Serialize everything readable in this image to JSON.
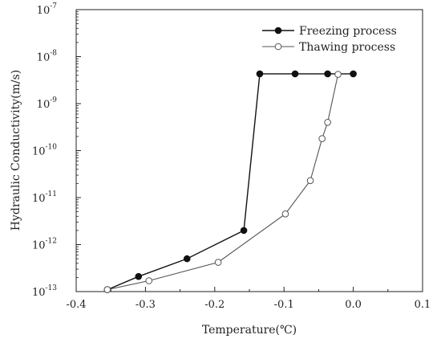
{
  "chart_data": {
    "type": "line",
    "title": "",
    "xlabel": "Temperature(℃)",
    "ylabel": "Hydraulic Conductivity(m/s)",
    "xlim": [
      -0.4,
      0.1
    ],
    "ylim": [
      1e-13,
      1e-07
    ],
    "y_scale": "log",
    "x_ticks": [
      "-0.4",
      "-0.3",
      "-0.2",
      "-0.1",
      "0.0",
      "0.1"
    ],
    "y_ticks": [
      {
        "base": "10",
        "exp": "-13"
      },
      {
        "base": "10",
        "exp": "-12"
      },
      {
        "base": "10",
        "exp": "-11"
      },
      {
        "base": "10",
        "exp": "-10"
      },
      {
        "base": "10",
        "exp": "-9"
      },
      {
        "base": "10",
        "exp": "-8"
      },
      {
        "base": "10",
        "exp": "-7"
      }
    ],
    "grid": false,
    "legend_position": "top-right",
    "series": [
      {
        "name": "Freezing process",
        "marker": "filled-circle",
        "color": "#111111",
        "x": [
          -0.355,
          -0.31,
          -0.24,
          -0.158,
          -0.135,
          -0.084,
          -0.037,
          0.0
        ],
        "y": [
          1.1e-13,
          2.1e-13,
          5e-13,
          2e-12,
          4.3e-09,
          4.3e-09,
          4.3e-09,
          4.3e-09
        ]
      },
      {
        "name": "Thawing process",
        "marker": "open-circle",
        "color": "#555555",
        "x": [
          -0.355,
          -0.295,
          -0.195,
          -0.098,
          -0.062,
          -0.045,
          -0.037,
          -0.022
        ],
        "y": [
          1.1e-13,
          1.7e-13,
          4.2e-13,
          4.5e-12,
          2.3e-11,
          1.8e-10,
          4e-10,
          4.2e-09
        ]
      }
    ]
  }
}
